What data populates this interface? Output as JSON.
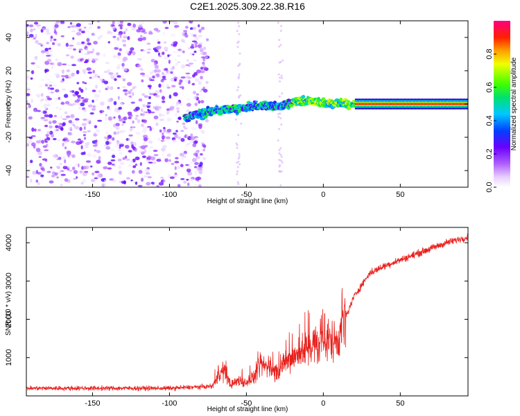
{
  "title": "C2E1.2025.309.22.38.R16",
  "chart_data": [
    {
      "type": "heatmap",
      "name": "spectrogram",
      "xlabel": "Height of straight line (km)",
      "ylabel": "Frequency (Hz)",
      "xlim": [
        -193,
        94
      ],
      "ylim": [
        -50,
        50
      ],
      "xticks": [
        -150,
        -100,
        -50,
        0,
        50
      ],
      "yticks": [
        -40,
        -20,
        0,
        20,
        40
      ],
      "colorbar": {
        "label": "Normalized spectral amplitude",
        "range": [
          0,
          1
        ],
        "ticks": [
          "0.0",
          "0.2",
          "0.4",
          "0.6",
          "0.8"
        ],
        "tick_values": [
          0,
          0.2,
          0.4,
          0.6,
          0.8
        ]
      },
      "noise_region_x": [
        -193,
        -75
      ],
      "signal_track": {
        "x": [
          -90,
          -80,
          -70,
          -60,
          -50,
          -40,
          -30,
          -20,
          -10,
          0,
          10,
          20,
          50,
          94
        ],
        "y": [
          -8,
          -6,
          -4,
          -3,
          -2,
          -1,
          -2,
          1,
          2,
          1,
          0,
          0,
          0,
          0
        ]
      }
    },
    {
      "type": "line",
      "name": "snr",
      "xlabel": "Height of straight line (km)",
      "ylabel": "SNR (10 * v/v)",
      "xlim": [
        -193,
        94
      ],
      "ylim": [
        0,
        4400
      ],
      "xticks": [
        -150,
        -100,
        -50,
        0,
        50
      ],
      "yticks": [
        1000,
        2000,
        3000,
        4000
      ],
      "color": "#e8201c",
      "series": [
        {
          "name": "SNR",
          "x": [
            -193,
            -150,
            -100,
            -72,
            -68,
            -65,
            -60,
            -55,
            -50,
            -45,
            -40,
            -35,
            -30,
            -25,
            -20,
            -15,
            -10,
            -5,
            0,
            5,
            10,
            15,
            20,
            25,
            30,
            40,
            50,
            60,
            70,
            80,
            94
          ],
          "y": [
            200,
            200,
            200,
            250,
            550,
            650,
            300,
            400,
            350,
            500,
            800,
            750,
            600,
            850,
            1000,
            1100,
            1300,
            1350,
            1300,
            1450,
            1500,
            2100,
            2600,
            2900,
            3200,
            3400,
            3550,
            3700,
            3850,
            4000,
            4150
          ]
        }
      ]
    }
  ]
}
